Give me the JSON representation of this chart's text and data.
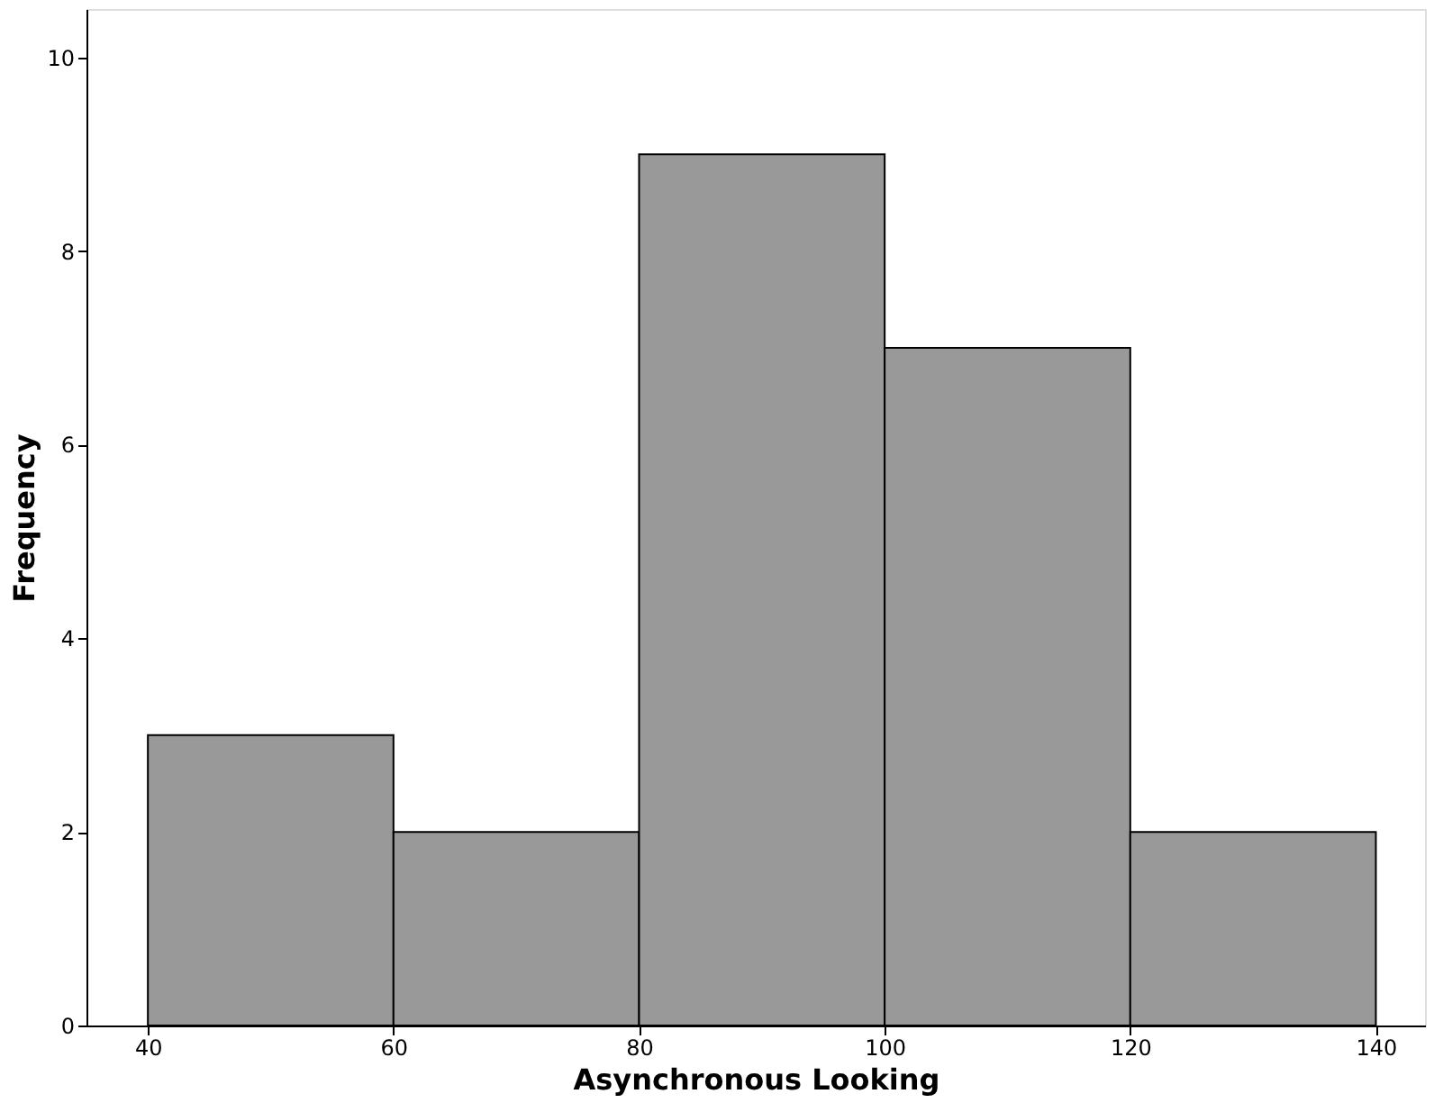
{
  "chart_data": {
    "type": "histogram",
    "xlabel": "Asynchronous Looking",
    "ylabel": "Frequency",
    "bins": [
      40,
      60,
      80,
      100,
      120,
      140
    ],
    "values": [
      3,
      2,
      9,
      7,
      2
    ],
    "color": "#999999",
    "xlim": [
      35,
      144
    ],
    "xticks": [
      40,
      60,
      80,
      100,
      120,
      140
    ],
    "ylim": [
      0,
      10.5
    ],
    "yticks": [
      0,
      2,
      4,
      6,
      8,
      10
    ],
    "grid": false
  }
}
